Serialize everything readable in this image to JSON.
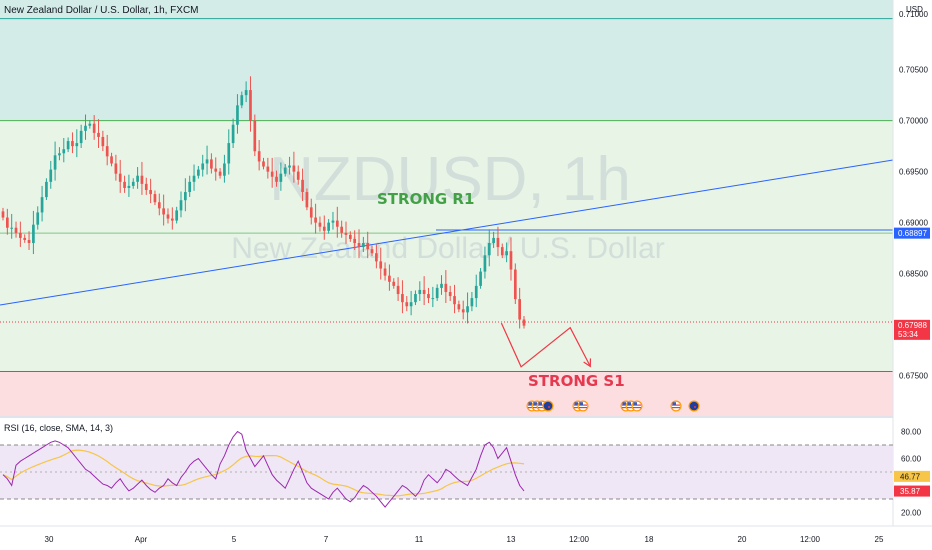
{
  "chart_data": {
    "type": "candlestick",
    "header_title": "New Zealand Dollar / U.S. Dollar, 1h, FXCM",
    "currency": "USD",
    "watermark": {
      "symbol": "NZDUSD, 1h",
      "name": "New Zealand Dollar / U.S. Dollar"
    },
    "price_axis": {
      "ylim": [
        0.67104,
        0.71183
      ],
      "ticks": [
        {
          "v": 0.705,
          "label": "0.70500"
        },
        {
          "v": 0.7,
          "label": "0.70000"
        },
        {
          "v": 0.695,
          "label": "0.69500"
        },
        {
          "v": 0.69,
          "label": "0.69000"
        },
        {
          "v": 0.685,
          "label": "0.68500"
        },
        {
          "v": 0.68,
          "label": "0.68000"
        },
        {
          "v": 0.675,
          "label": "0.67500"
        }
      ],
      "clipped_top_label": "0.71000"
    },
    "price_labels": {
      "level": {
        "value": 0.68897,
        "label": "0.68897",
        "color": "#2962ff"
      },
      "last": {
        "value": 0.67988,
        "label": "0.67988",
        "countdown": "53:34",
        "color": "#f23645"
      }
    },
    "zones": [
      {
        "from": 0.7,
        "to": 0.71183,
        "color": "#d3ece8"
      },
      {
        "from": 0.6754,
        "to": 0.7,
        "color": "#e7f4e6"
      },
      {
        "from": 0.67104,
        "to": 0.6754,
        "color": "#fcdde0"
      }
    ],
    "horizontal_lines": [
      {
        "value": 0.71,
        "color": "#26a69a"
      },
      {
        "value": 0.7,
        "color": "#4caf50"
      },
      {
        "value": 0.68897,
        "color": "#81c784"
      },
      {
        "value": 0.6754,
        "color": "#f23645"
      }
    ],
    "labels": [
      {
        "text": "STRONG R1",
        "color": "#43a047"
      },
      {
        "text": "STRONG S1",
        "color": "#e53950"
      }
    ],
    "close_series": [
      0.6905,
      0.6895,
      0.6895,
      0.689,
      0.6885,
      0.6883,
      0.688,
      0.6898,
      0.691,
      0.6925,
      0.694,
      0.6952,
      0.6966,
      0.6968,
      0.6972,
      0.698,
      0.6975,
      0.6978,
      0.699,
      0.6995,
      0.6997,
      0.6988,
      0.6984,
      0.6975,
      0.6965,
      0.6958,
      0.6948,
      0.694,
      0.6934,
      0.6936,
      0.694,
      0.6946,
      0.6938,
      0.6932,
      0.6928,
      0.692,
      0.6914,
      0.6908,
      0.6904,
      0.6902,
      0.6912,
      0.6922,
      0.693,
      0.694,
      0.6946,
      0.6952,
      0.6958,
      0.6962,
      0.6953,
      0.695,
      0.6946,
      0.6958,
      0.6978,
      0.6996,
      0.7015,
      0.7025,
      0.703,
      0.7,
      0.697,
      0.696,
      0.6955,
      0.695,
      0.6945,
      0.694,
      0.6948,
      0.6954,
      0.6956,
      0.695,
      0.6942,
      0.693,
      0.6915,
      0.6905,
      0.69,
      0.6896,
      0.6892,
      0.69,
      0.6902,
      0.6896,
      0.689,
      0.6888,
      0.6884,
      0.688,
      0.6876,
      0.688,
      0.6874,
      0.687,
      0.6862,
      0.6855,
      0.6848,
      0.6842,
      0.6838,
      0.683,
      0.6822,
      0.6818,
      0.6822,
      0.683,
      0.6834,
      0.683,
      0.6826,
      0.6826,
      0.6836,
      0.684,
      0.6832,
      0.6828,
      0.682,
      0.6815,
      0.6812,
      0.6818,
      0.6826,
      0.6838,
      0.6852,
      0.6868,
      0.688,
      0.6885,
      0.6876,
      0.6868,
      0.6872,
      0.6854,
      0.6825,
      0.6805,
      0.6799
    ],
    "forecast_path": [
      {
        "x": 0.5615,
        "y": 0.68015
      },
      {
        "x": 0.5835,
        "y": 0.67586
      },
      {
        "x": 0.6385,
        "y": 0.6797
      },
      {
        "x": 0.661,
        "y": 0.6759
      }
    ],
    "x_axis": {
      "ticks": [
        {
          "label": "30"
        },
        {
          "label": "Apr"
        },
        {
          "label": "5"
        },
        {
          "label": "7"
        },
        {
          "label": "11"
        },
        {
          "label": "13"
        },
        {
          "label": "12:00"
        },
        {
          "label": "18"
        },
        {
          "label": "20"
        },
        {
          "label": "12:00"
        },
        {
          "label": "25"
        }
      ]
    },
    "rsi": {
      "title": "RSI (16, close, SMA, 14, 3)",
      "ylim": [
        10,
        90
      ],
      "band": [
        30,
        70
      ],
      "ticks": [
        {
          "v": 80,
          "label": "80.00"
        },
        {
          "v": 60,
          "label": "60.00"
        },
        {
          "v": 20,
          "label": "20.00"
        }
      ],
      "sma_value": {
        "value": 46.77,
        "label": "46.77",
        "color": "#f7c548"
      },
      "rsi_value": {
        "value": 35.87,
        "label": "35.87",
        "color": "#f23645"
      },
      "series": [
        48,
        45,
        40,
        55,
        58,
        60,
        62,
        64,
        66,
        68,
        70,
        72,
        73,
        72,
        70,
        68,
        64,
        60,
        56,
        52,
        50,
        47,
        44,
        41,
        40,
        38,
        42,
        45,
        40,
        36,
        38,
        41,
        44,
        40,
        37,
        35,
        38,
        40,
        45,
        42,
        40,
        46,
        50,
        55,
        58,
        60,
        56,
        52,
        48,
        45,
        56,
        62,
        70,
        76,
        80,
        78,
        66,
        60,
        54,
        58,
        62,
        55,
        48,
        44,
        41,
        38,
        45,
        52,
        58,
        50,
        42,
        38,
        36,
        34,
        32,
        30,
        35,
        38,
        34,
        30,
        28,
        31,
        36,
        40,
        38,
        35,
        32,
        28,
        24,
        28,
        32,
        36,
        40,
        38,
        35,
        32,
        36,
        44,
        48,
        45,
        42,
        46,
        52,
        50,
        47,
        44,
        42,
        40,
        46,
        52,
        62,
        70,
        72,
        68,
        60,
        64,
        68,
        58,
        48,
        40,
        36
      ]
    },
    "events": [
      {
        "name": "us-flag-icon"
      },
      {
        "name": "us-flag-icon"
      },
      {
        "name": "us-flag-icon"
      },
      {
        "name": "nz-flag-icon"
      },
      {
        "name": "us-flag-icon"
      },
      {
        "name": "us-flag-icon"
      },
      {
        "name": "us-flag-icon"
      },
      {
        "name": "us-flag-icon"
      },
      {
        "name": "us-flag-icon"
      },
      {
        "name": "us-flag-icon"
      },
      {
        "name": "nz-flag-icon"
      }
    ],
    "colors": {
      "up": "#26a69a",
      "down": "#ef5350",
      "trendline": "#2962ff",
      "rsi_line": "#9c27b0",
      "rsi_sma": "#f7c548",
      "rsi_band": "#efe7f5",
      "forecast": "#f23645",
      "axis_text": "#131722"
    }
  }
}
